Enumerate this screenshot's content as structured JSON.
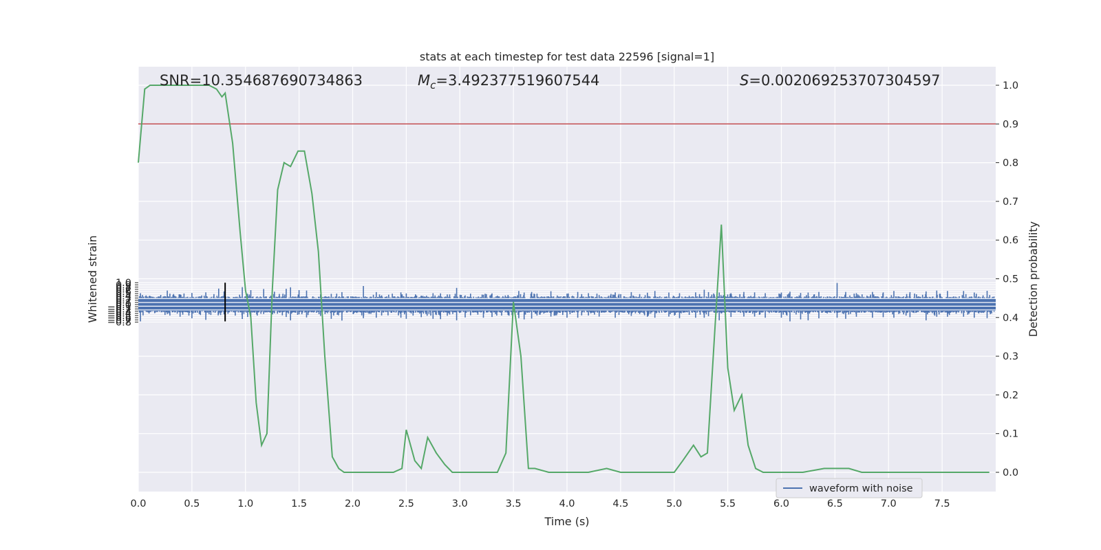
{
  "chart_data": {
    "type": "line",
    "title": "stats at each timestep for test data 22596 [signal=1]",
    "xlabel": "Time (s)",
    "ylabel": "Whitened strain",
    "y2label": "Detection probability",
    "xlim": [
      0.0,
      8.0
    ],
    "ylim": [
      -0.85,
      1.08
    ],
    "y2lim": [
      -0.05,
      1.03
    ],
    "xticks": [
      "0.0",
      "0.5",
      "1.0",
      "1.5",
      "2.0",
      "2.5",
      "3.0",
      "3.5",
      "4.0",
      "4.5",
      "5.0",
      "5.5",
      "6.0",
      "6.5",
      "7.0",
      "7.5"
    ],
    "xtick_values": [
      0.0,
      0.5,
      1.0,
      1.5,
      2.0,
      2.5,
      3.0,
      3.5,
      4.0,
      4.5,
      5.0,
      5.5,
      6.0,
      6.5,
      7.0,
      7.5
    ],
    "yticks": [
      "1.0",
      "0.9",
      "0.8",
      "0.7",
      "0.6",
      "0.5",
      "0.4",
      "0.3",
      "0.2",
      "0.1",
      "0.0",
      "−0.1",
      "−0.2",
      "−0.3",
      "−0.4",
      "−0.5",
      "−0.6",
      "−0.7",
      "−0.8"
    ],
    "ytick_values": [
      1.0,
      0.9,
      0.8,
      0.7,
      0.6,
      0.5,
      0.4,
      0.3,
      0.2,
      0.1,
      0.0,
      -0.1,
      -0.2,
      -0.3,
      -0.4,
      -0.5,
      -0.6,
      -0.7,
      -0.8
    ],
    "y2ticks": [
      "1.0",
      "0.9",
      "0.8",
      "0.7",
      "0.6",
      "0.5",
      "0.4",
      "0.3",
      "0.2",
      "0.1",
      "0.0"
    ],
    "y2tick_values": [
      1.0,
      0.9,
      0.8,
      0.7,
      0.6,
      0.5,
      0.4,
      0.3,
      0.2,
      0.1,
      0.0
    ],
    "grid": true,
    "legend_placement": "bottom-right",
    "annotations": {
      "snr": "SNR=10.354687690734863",
      "mc_symbol": "M",
      "mc_sub": "c",
      "mc_value": "=3.492377519607544",
      "s_symbol": "S",
      "s_value": "=0.002069253707304597"
    },
    "threshold_line": {
      "y2": 0.9,
      "color": "#c44e52"
    },
    "marker_line": {
      "x": 0.81,
      "y_from": -0.77,
      "y_to": 1.0,
      "color": "#000000"
    },
    "series": [
      {
        "name": "waveform with noise",
        "axis": "left",
        "color": "#4c72b0",
        "note_style": "dense noise trace",
        "peaks": [
          [
            0.02,
            0.52,
            -0.77
          ],
          [
            0.1,
            0.38,
            -0.41
          ],
          [
            0.27,
            0.64,
            -0.43
          ],
          [
            0.39,
            0.47,
            -0.56
          ],
          [
            0.5,
            0.53,
            -0.63
          ],
          [
            0.63,
            0.56,
            -0.7
          ],
          [
            0.75,
            0.73,
            -0.43
          ],
          [
            0.8,
            0.6,
            -0.45
          ],
          [
            0.97,
            0.8,
            -0.66
          ],
          [
            1.02,
            0.44,
            -0.57
          ],
          [
            1.05,
            0.66,
            -0.63
          ],
          [
            1.17,
            0.71,
            -0.43
          ],
          [
            1.27,
            0.59,
            -0.4
          ],
          [
            1.38,
            0.72,
            -0.57
          ],
          [
            1.42,
            0.79,
            -0.72
          ],
          [
            1.5,
            0.66,
            -0.45
          ],
          [
            1.57,
            0.64,
            -0.59
          ],
          [
            1.7,
            0.47,
            -0.52
          ],
          [
            1.8,
            0.49,
            -0.65
          ],
          [
            1.9,
            0.57,
            -0.73
          ],
          [
            2.1,
            0.85,
            -0.62
          ],
          [
            2.22,
            0.57,
            -0.6
          ],
          [
            2.27,
            0.42,
            -0.5
          ],
          [
            2.45,
            0.56,
            -0.6
          ],
          [
            2.5,
            0.51,
            -0.65
          ],
          [
            2.64,
            0.41,
            -0.58
          ],
          [
            2.75,
            0.52,
            -0.65
          ],
          [
            2.82,
            0.51,
            -0.67
          ],
          [
            2.97,
            0.76,
            -0.72
          ],
          [
            3.05,
            0.42,
            -0.59
          ],
          [
            3.1,
            0.5,
            -0.49
          ],
          [
            3.22,
            0.45,
            -0.6
          ],
          [
            3.3,
            0.51,
            -0.57
          ],
          [
            3.45,
            0.44,
            -0.48
          ],
          [
            3.55,
            0.62,
            -0.62
          ],
          [
            3.6,
            0.55,
            -0.68
          ],
          [
            3.67,
            0.58,
            -0.64
          ],
          [
            3.72,
            0.5,
            -0.5
          ],
          [
            3.85,
            0.61,
            -0.55
          ],
          [
            4.0,
            0.5,
            -0.6
          ],
          [
            4.1,
            0.58,
            -0.6
          ],
          [
            4.2,
            0.52,
            -0.5
          ],
          [
            4.3,
            0.43,
            -0.55
          ],
          [
            4.45,
            0.56,
            -0.6
          ],
          [
            4.6,
            0.57,
            -0.52
          ],
          [
            4.75,
            0.54,
            -0.56
          ],
          [
            4.82,
            0.62,
            -0.6
          ],
          [
            4.95,
            0.55,
            -0.55
          ],
          [
            5.05,
            0.52,
            -0.62
          ],
          [
            5.2,
            0.56,
            -0.6
          ],
          [
            5.28,
            0.68,
            -0.6
          ],
          [
            5.32,
            0.57,
            -0.53
          ],
          [
            5.42,
            0.55,
            -0.72
          ],
          [
            5.53,
            0.52,
            -0.57
          ],
          [
            5.65,
            0.58,
            -0.55
          ],
          [
            5.75,
            0.56,
            -0.55
          ],
          [
            5.85,
            0.52,
            -0.6
          ],
          [
            6.0,
            0.55,
            -0.6
          ],
          [
            6.08,
            0.59,
            -0.77
          ],
          [
            6.18,
            0.53,
            -0.68
          ],
          [
            6.25,
            0.55,
            -0.72
          ],
          [
            6.35,
            0.58,
            -0.63
          ],
          [
            6.52,
            0.99,
            -0.6
          ],
          [
            6.6,
            0.58,
            -0.65
          ],
          [
            6.7,
            0.52,
            -0.56
          ],
          [
            6.85,
            0.58,
            -0.6
          ],
          [
            6.95,
            0.56,
            -0.58
          ],
          [
            7.05,
            0.62,
            -0.6
          ],
          [
            7.2,
            0.57,
            -0.58
          ],
          [
            7.35,
            0.6,
            -0.72
          ],
          [
            7.45,
            0.64,
            -0.56
          ],
          [
            7.55,
            0.62,
            -0.56
          ],
          [
            7.7,
            0.62,
            -0.56
          ],
          [
            7.8,
            0.55,
            -0.6
          ],
          [
            7.92,
            0.63,
            -0.62
          ]
        ]
      },
      {
        "name": "",
        "axis": "right",
        "color": "#55a868",
        "x": [
          0.0,
          0.06,
          0.11,
          0.2,
          0.3,
          0.4,
          0.5,
          0.6,
          0.66,
          0.73,
          0.78,
          0.81,
          0.88,
          0.95,
          1.0,
          1.05,
          1.1,
          1.15,
          1.2,
          1.25,
          1.3,
          1.36,
          1.42,
          1.49,
          1.55,
          1.62,
          1.68,
          1.74,
          1.81,
          1.87,
          1.92,
          2.0,
          2.15,
          2.38,
          2.46,
          2.5,
          2.58,
          2.64,
          2.7,
          2.78,
          2.86,
          2.93,
          3.0,
          3.06,
          3.14,
          3.22,
          3.35,
          3.43,
          3.5,
          3.57,
          3.64,
          3.7,
          3.83,
          4.0,
          4.2,
          4.37,
          4.5,
          4.8,
          5.0,
          5.08,
          5.18,
          5.25,
          5.31,
          5.38,
          5.44,
          5.5,
          5.56,
          5.63,
          5.69,
          5.76,
          5.83,
          6.0,
          6.2,
          6.4,
          6.55,
          6.63,
          6.75,
          7.0,
          7.5,
          7.94
        ],
        "values": [
          0.8,
          0.99,
          1.0,
          1.0,
          1.0,
          1.0,
          1.0,
          1.0,
          1.0,
          0.99,
          0.97,
          0.98,
          0.85,
          0.62,
          0.47,
          0.4,
          0.18,
          0.07,
          0.1,
          0.47,
          0.73,
          0.8,
          0.79,
          0.83,
          0.83,
          0.72,
          0.57,
          0.3,
          0.04,
          0.01,
          0.0,
          0.0,
          0.0,
          0.0,
          0.01,
          0.11,
          0.03,
          0.01,
          0.09,
          0.05,
          0.02,
          0.0,
          0.0,
          0.0,
          0.0,
          0.0,
          0.0,
          0.05,
          0.44,
          0.3,
          0.01,
          0.01,
          0.0,
          0.0,
          0.0,
          0.01,
          0.0,
          0.0,
          0.0,
          0.03,
          0.07,
          0.04,
          0.05,
          0.37,
          0.64,
          0.27,
          0.16,
          0.2,
          0.07,
          0.01,
          0.0,
          0.0,
          0.0,
          0.01,
          0.01,
          0.01,
          0.0,
          0.0,
          0.0,
          0.0
        ]
      }
    ]
  }
}
